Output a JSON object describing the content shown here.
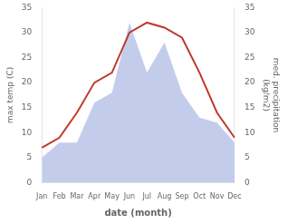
{
  "chart_data": {
    "type": "line",
    "categories": [
      "Jan",
      "Feb",
      "Mar",
      "Apr",
      "May",
      "Jun",
      "Jul",
      "Aug",
      "Sep",
      "Oct",
      "Nov",
      "Dec"
    ],
    "series": [
      {
        "type": "area",
        "axis": "y2",
        "color": "#b8c4e8",
        "values": [
          5,
          8,
          8,
          16,
          18,
          32,
          22,
          28,
          18,
          13,
          12,
          8
        ]
      },
      {
        "type": "line",
        "color": "#c0392b",
        "values": [
          7,
          9,
          14,
          20,
          22,
          30,
          32,
          31,
          29,
          22,
          14,
          9
        ]
      }
    ],
    "xlabel": "date (month)",
    "ylabel": "max temp (C)",
    "y2label": "med. precipitation\n(kg/m2)",
    "ylim": [
      0,
      35
    ],
    "yticks": [
      0,
      5,
      10,
      15,
      20,
      25,
      30,
      35
    ],
    "y2lim": [
      0,
      35
    ],
    "y2ticks": [
      0,
      5,
      10,
      15,
      20,
      25,
      30,
      35
    ],
    "grid": false
  }
}
